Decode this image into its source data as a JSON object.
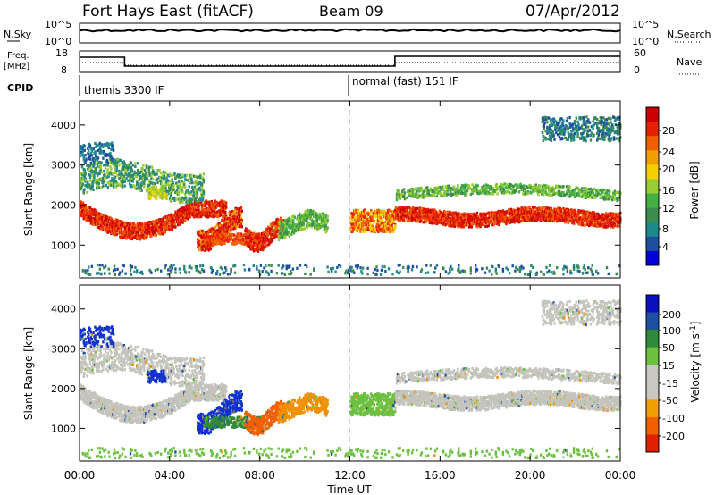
{
  "header": {
    "station": "Fort Hays East (fitACF)",
    "beam": "Beam 09",
    "date": "07/Apr/2012"
  },
  "top_panel": {
    "left_label": "N.Sky",
    "right_label": "N.Search",
    "left_ticks": [
      "10^5",
      "10^0"
    ],
    "right_ticks": [
      "10^5",
      "10^0"
    ]
  },
  "freq_panel": {
    "left_label_1": "Freq.",
    "left_label_2": "[MHz]",
    "left_ticks": [
      "18",
      "8"
    ],
    "right_label": "Nave",
    "right_ticks": [
      "60",
      "0"
    ]
  },
  "cpid": {
    "label": "CPID",
    "mode_1": "themis 3300 IF",
    "mode_2": "normal (fast) 151 IF"
  },
  "chart_data": [
    {
      "type": "heatmap",
      "title": "",
      "ylabel": "Slant Range [km]",
      "xlabel": "",
      "xlim": [
        "00:00",
        "00:00"
      ],
      "ylim": [
        180,
        4600
      ],
      "y_ticks": [
        "4000",
        "3000",
        "2000",
        "1000"
      ],
      "colorbar": {
        "label": "Power [dB]",
        "ticks": [
          "28",
          "24",
          "20",
          "16",
          "12",
          "8",
          "4"
        ],
        "colors": [
          "#0000dd",
          "#1d4fa0",
          "#1f8a8c",
          "#3c8c50",
          "#44b043",
          "#9acd32",
          "#f5d000",
          "#f0a000",
          "#f06000",
          "#e82000",
          "#cc0000"
        ]
      }
    },
    {
      "type": "heatmap",
      "title": "",
      "ylabel": "Slant Range [km]",
      "xlabel": "Time UT",
      "x_ticks": [
        "00:00",
        "04:00",
        "08:00",
        "12:00",
        "16:00",
        "20:00",
        "00:00"
      ],
      "ylim": [
        180,
        4600
      ],
      "y_ticks": [
        "4000",
        "3000",
        "2000",
        "1000"
      ],
      "colorbar": {
        "label": "Velocity [m s^-1]",
        "ticks": [
          "200",
          "100",
          "50",
          "15",
          "-15",
          "-50",
          "-100",
          "-200"
        ],
        "colors": [
          "#0a10c0",
          "#1f4fa0",
          "#2f8a3a",
          "#6cc040",
          "#c8c8c0",
          "#c8c8c0",
          "#f0a000",
          "#f06000",
          "#e02000"
        ]
      }
    }
  ]
}
